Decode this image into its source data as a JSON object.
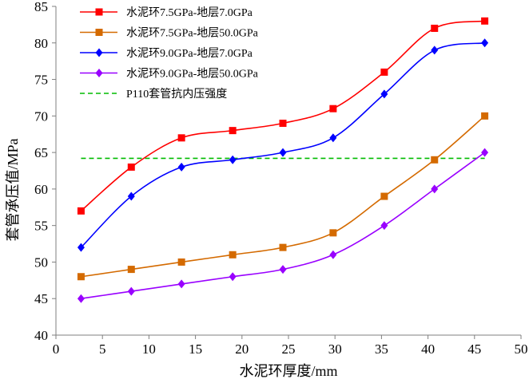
{
  "chart_data": {
    "type": "line",
    "xlabel": "水泥环厚度/mm",
    "ylabel": "套管承压值/MPa",
    "xlim": [
      0,
      50
    ],
    "ylim": [
      40,
      85
    ],
    "xticks": [
      0,
      5,
      10,
      15,
      20,
      25,
      30,
      35,
      40,
      45,
      50
    ],
    "yticks": [
      40,
      45,
      50,
      55,
      60,
      65,
      70,
      75,
      80,
      85
    ],
    "grid": false,
    "legend_position": "top-left",
    "x": [
      2.7,
      8.1,
      13.5,
      19.0,
      24.4,
      29.8,
      35.3,
      40.7,
      46.1
    ],
    "series": [
      {
        "name": "水泥环7.5GPa-地层7.0GPa",
        "color": "#ff0000",
        "marker": "square",
        "values": [
          57,
          63,
          67,
          68,
          69,
          71,
          76,
          82,
          83
        ]
      },
      {
        "name": "水泥环7.5GPa-地层50.0GPa",
        "color": "#d46a00",
        "marker": "square",
        "values": [
          48,
          49,
          50,
          51,
          52,
          54,
          59,
          64,
          70
        ]
      },
      {
        "name": "水泥环9.0GPa-地层7.0GPa",
        "color": "#0000ff",
        "marker": "diamond",
        "values": [
          52,
          59,
          63,
          64,
          65,
          67,
          73,
          79,
          80
        ]
      },
      {
        "name": "水泥环9.0GPa-地层50.0GPa",
        "color": "#9900ff",
        "marker": "diamond",
        "values": [
          45,
          46,
          47,
          48,
          49,
          51,
          55,
          60,
          65
        ]
      }
    ],
    "reference_line": {
      "name": "P110套管抗内压强度",
      "y": 64.2,
      "x_range": [
        2.7,
        46.1
      ],
      "color": "#00bb00",
      "style": "dashed"
    }
  }
}
